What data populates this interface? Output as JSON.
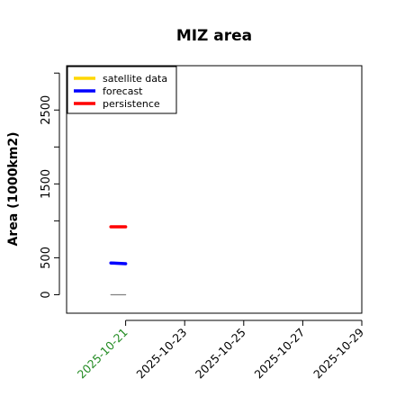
{
  "chart_data": {
    "type": "line",
    "title": "MIZ area",
    "xlabel": "",
    "ylabel": "Area (1000km2)",
    "xlim": [
      "2025-10-19",
      "2025-10-29"
    ],
    "ylim": [
      -250,
      3100
    ],
    "y_ticks": [
      0,
      500,
      1500,
      2500
    ],
    "y_tick_labels": [
      "0",
      "500",
      "1500",
      "2500"
    ],
    "x_ticks": [
      "2025-10-21",
      "2025-10-23",
      "2025-10-25",
      "2025-10-27",
      "2025-10-29"
    ],
    "x_tick_labels": [
      "2025-10-21",
      "2025-10-23",
      "2025-10-25",
      "2025-10-27",
      "2025-10-29"
    ],
    "highlight_tick": "2025-10-21",
    "highlight_color": "#228b22",
    "grid": false,
    "legend": {
      "position": "top-left",
      "entries": [
        {
          "label": "satellite data",
          "color": "#ffd700"
        },
        {
          "label": "forecast",
          "color": "#0000ff"
        },
        {
          "label": "persistence",
          "color": "#ff0000"
        }
      ]
    },
    "series": [
      {
        "name": "persistence",
        "color": "#ff0000",
        "x": [
          "2025-10-20 12:00",
          "2025-10-21"
        ],
        "values": [
          920,
          920
        ]
      },
      {
        "name": "forecast",
        "color": "#0000ff",
        "x": [
          "2025-10-20 12:00",
          "2025-10-21"
        ],
        "values": [
          430,
          420
        ]
      },
      {
        "name": "",
        "color": "#808080",
        "x": [
          "2025-10-20 12:00",
          "2025-10-21"
        ],
        "values": [
          0,
          0
        ]
      }
    ]
  }
}
